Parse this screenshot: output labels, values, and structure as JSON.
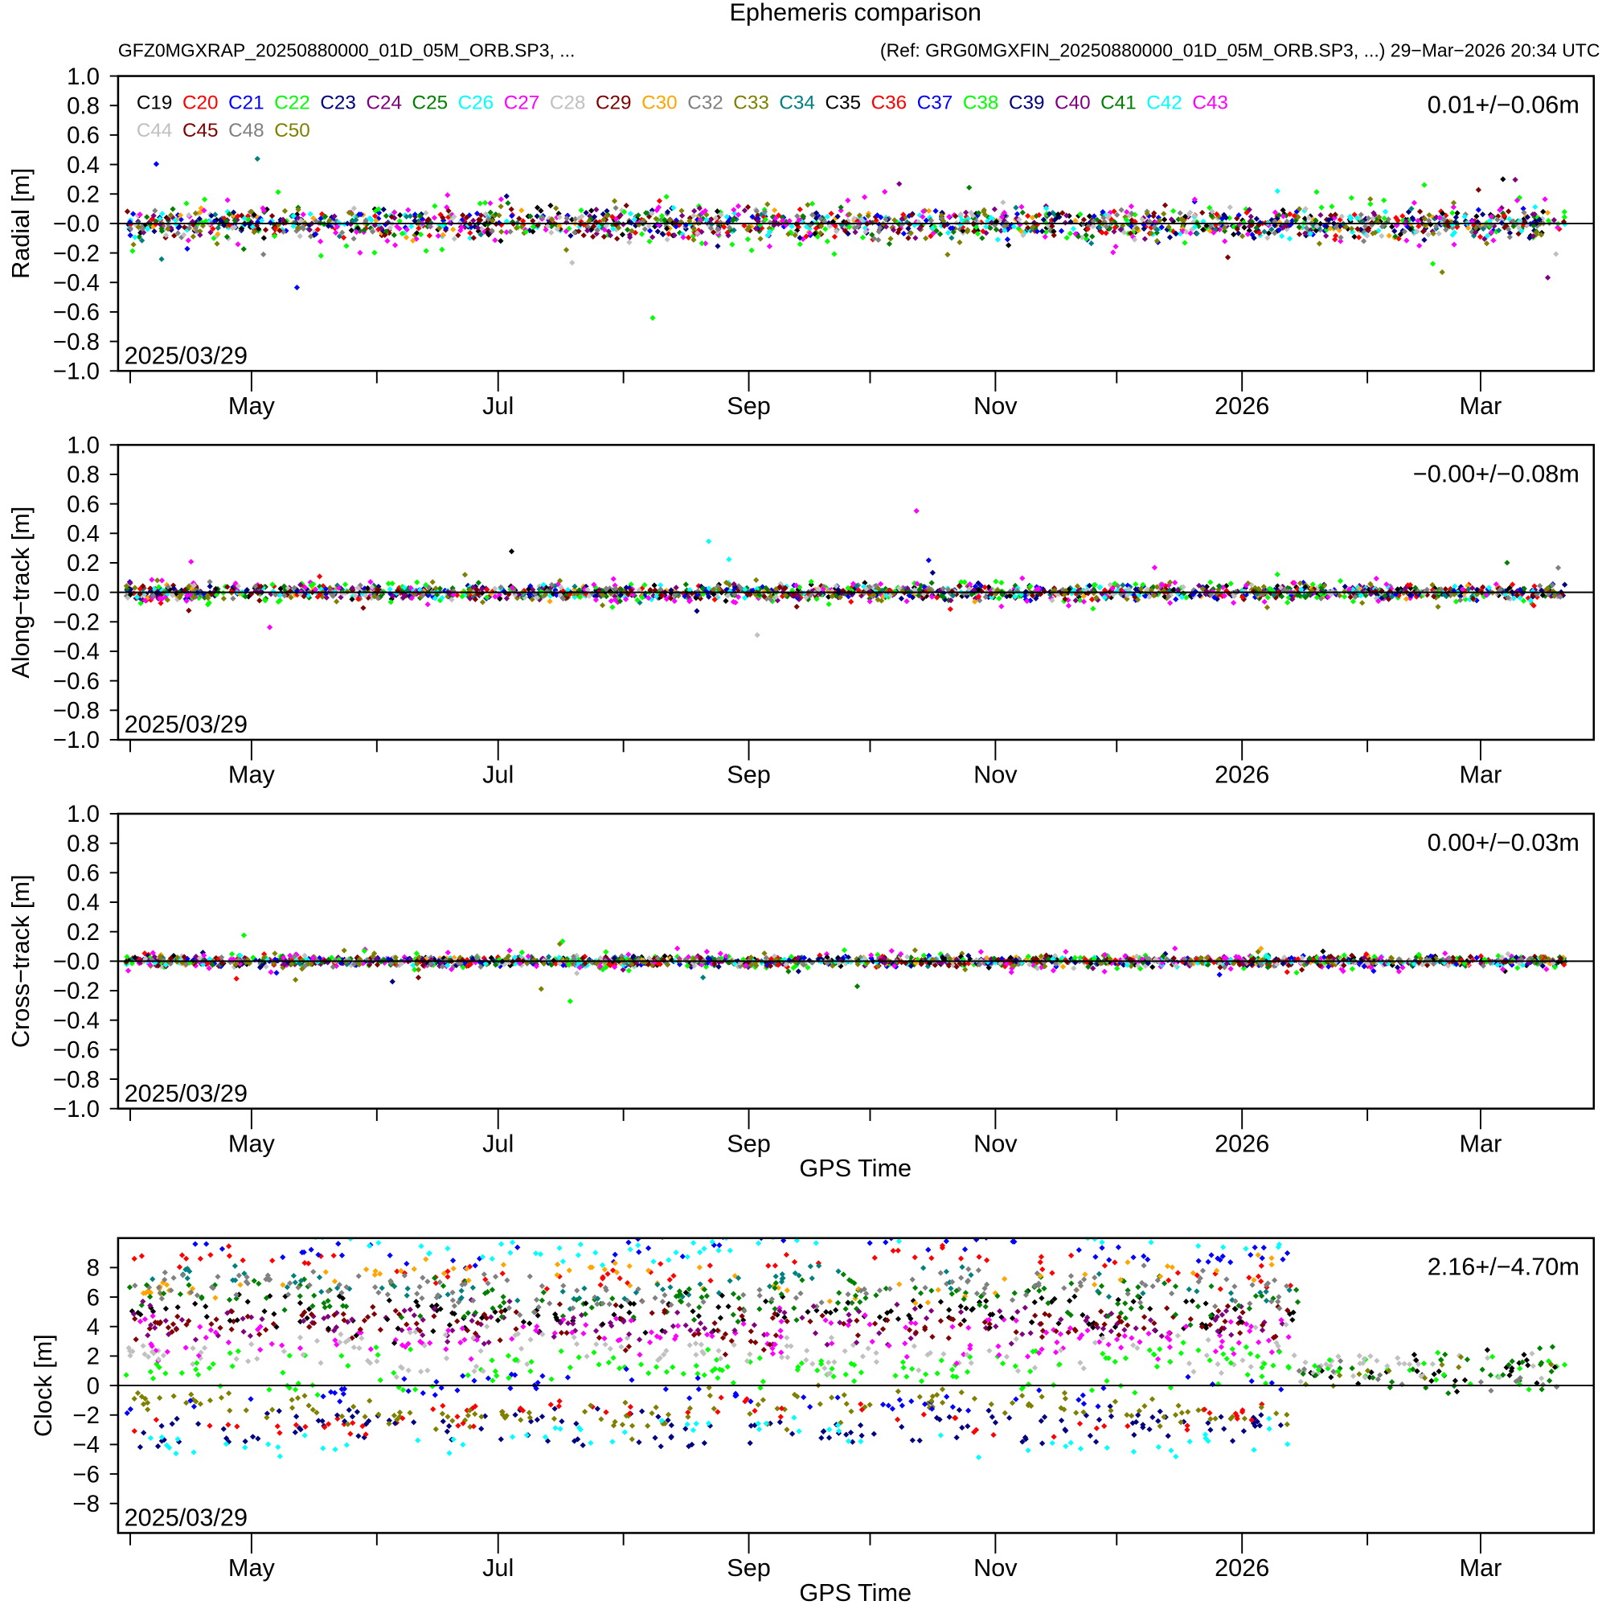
{
  "title": "Ephemeris comparison",
  "subtitle_left": "GFZ0MGXRAP_20250880000_01D_05M_ORB.SP3, ...",
  "subtitle_right": "(Ref: GRG0MGXFIN_20250880000_01D_05M_ORB.SP3, ...) 29−Mar−2026 20:34 UTC",
  "chart_data": {
    "type": "scatter",
    "start_date_label": "2025/03/29",
    "x_unit": "days since 2025-03-29",
    "xlim": [
      0,
      365
    ],
    "x_ticks": [
      {
        "label": "",
        "day": 3
      },
      {
        "label": "May",
        "day": 33
      },
      {
        "label": "",
        "day": 64
      },
      {
        "label": "Jul",
        "day": 94
      },
      {
        "label": "",
        "day": 125
      },
      {
        "label": "Sep",
        "day": 156
      },
      {
        "label": "",
        "day": 186
      },
      {
        "label": "Nov",
        "day": 217
      },
      {
        "label": "",
        "day": 247
      },
      {
        "label": "2026",
        "day": 278
      },
      {
        "label": "",
        "day": 309
      },
      {
        "label": "Mar",
        "day": 337
      }
    ],
    "series": [
      {
        "name": "C19",
        "color": "#000000",
        "clock": 5.0
      },
      {
        "name": "C20",
        "color": "#ff0000",
        "clock": 8.0
      },
      {
        "name": "C21",
        "color": "#0000ff",
        "clock": 9.5
      },
      {
        "name": "C22",
        "color": "#00ff00",
        "clock": 0.8
      },
      {
        "name": "C23",
        "color": "#000080",
        "clock": -2.8
      },
      {
        "name": "C24",
        "color": "#800080",
        "clock": 4.0
      },
      {
        "name": "C25",
        "color": "#008000",
        "clock": 6.0
      },
      {
        "name": "C26",
        "color": "#00ffff",
        "clock": 9.8
      },
      {
        "name": "C27",
        "color": "#ff00ff",
        "clock": 3.5
      },
      {
        "name": "C28",
        "color": "#c0c0c0",
        "clock": 2.0
      },
      {
        "name": "C29",
        "color": "#800000",
        "clock": 4.5
      },
      {
        "name": "C30",
        "color": "#ffa500",
        "clock": 7.2
      },
      {
        "name": "C32",
        "color": "#808080",
        "clock": 6.5
      },
      {
        "name": "C33",
        "color": "#808000",
        "clock": -1.8
      },
      {
        "name": "C34",
        "color": "#008080",
        "clock": 6.8
      },
      {
        "name": "C35",
        "color": "#000000",
        "clock": 4.8
      },
      {
        "name": "C36",
        "color": "#ff0000",
        "clock": -2.0
      },
      {
        "name": "C37",
        "color": "#0000ff",
        "clock": -0.5
      },
      {
        "name": "C38",
        "color": "#00ff00",
        "clock": 1.5
      },
      {
        "name": "C39",
        "color": "#000080",
        "clock": -3.0
      },
      {
        "name": "C40",
        "color": "#800080",
        "clock": 4.2
      },
      {
        "name": "C41",
        "color": "#008000",
        "clock": 5.8
      },
      {
        "name": "C42",
        "color": "#00ffff",
        "clock": -3.5
      },
      {
        "name": "C43",
        "color": "#ff00ff",
        "clock": 3.2
      },
      {
        "name": "C44",
        "color": "#c0c0c0",
        "clock": 2.5
      },
      {
        "name": "C45",
        "color": "#800000",
        "clock": 3.8
      },
      {
        "name": "C48",
        "color": "#808080",
        "clock": 6.2
      },
      {
        "name": "C50",
        "color": "#808000",
        "clock": -1.5
      }
    ],
    "panels": [
      {
        "ylabel": "Radial [m]",
        "ylim": [
          -1.0,
          1.0
        ],
        "yticks": [
          "−1.0",
          "−0.8",
          "−0.6",
          "−0.4",
          "−0.2",
          "−0.0",
          "0.2",
          "0.4",
          "0.6",
          "0.8",
          "1.0"
        ],
        "ytick_values": [
          -1,
          -0.8,
          -0.6,
          -0.4,
          -0.2,
          0,
          0.2,
          0.4,
          0.6,
          0.8,
          1
        ],
        "stats": "0.01+/−0.06m",
        "spread": 0.07,
        "xlabel": ""
      },
      {
        "ylabel": "Along−track [m]",
        "ylim": [
          -1.0,
          1.0
        ],
        "yticks": [
          "−1.0",
          "−0.8",
          "−0.6",
          "−0.4",
          "−0.2",
          "−0.0",
          "0.2",
          "0.4",
          "0.6",
          "0.8",
          "1.0"
        ],
        "ytick_values": [
          -1,
          -0.8,
          -0.6,
          -0.4,
          -0.2,
          0,
          0.2,
          0.4,
          0.6,
          0.8,
          1
        ],
        "stats": "−0.00+/−0.08m",
        "spread": 0.035,
        "xlabel": ""
      },
      {
        "ylabel": "Cross−track [m]",
        "ylim": [
          -1.0,
          1.0
        ],
        "yticks": [
          "−1.0",
          "−0.8",
          "−0.6",
          "−0.4",
          "−0.2",
          "−0.0",
          "0.2",
          "0.4",
          "0.6",
          "0.8",
          "1.0"
        ],
        "ytick_values": [
          -1,
          -0.8,
          -0.6,
          -0.4,
          -0.2,
          0,
          0.2,
          0.4,
          0.6,
          0.8,
          1
        ],
        "stats": "0.00+/−0.03m",
        "spread": 0.025,
        "xlabel": "GPS Time"
      },
      {
        "ylabel": "Clock [m]",
        "ylim": [
          -10,
          10
        ],
        "yticks": [
          "−8",
          "−6",
          "−4",
          "−2",
          "0",
          "2",
          "4",
          "6",
          "8"
        ],
        "ytick_values": [
          -8,
          -6,
          -4,
          -2,
          0,
          2,
          4,
          6,
          8
        ],
        "stats": "2.16+/−4.70m",
        "spread": 0.6,
        "xlabel": "GPS Time"
      }
    ]
  }
}
